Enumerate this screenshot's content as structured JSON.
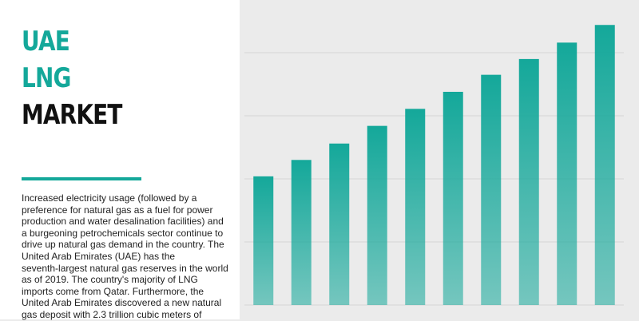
{
  "title": [
    "UAE",
    "LNG",
    "MARKET"
  ],
  "description": [
    "Increased electricity usage (followed by a",
    "preference for natural gas as a fuel for power",
    "production and water desalination facilities) and",
    "a burgeoning petrochemicals sector continue to",
    "drive up natural gas demand in the country. The",
    "United Arab Emirates (UAE) has the",
    "seventh-largest natural gas reserves in the world",
    "as of 2019. The country's majority of LNG",
    "imports come from Qatar. Furthermore, the",
    "United Arab Emirates discovered a new natural",
    "gas deposit with 2.3 trillion cubic meters of"
  ],
  "chart_data": {
    "type": "bar",
    "categories": [
      null,
      null,
      null,
      null,
      null,
      null,
      null,
      null,
      null,
      null
    ],
    "values": [
      2.04,
      2.3,
      2.56,
      2.84,
      3.11,
      3.38,
      3.65,
      3.9,
      4.16,
      4.44
    ],
    "color": "#14a89a",
    "ylim": [
      0,
      4.5
    ],
    "yticks": [
      0,
      1,
      2,
      3,
      4
    ],
    "grid": true
  }
}
